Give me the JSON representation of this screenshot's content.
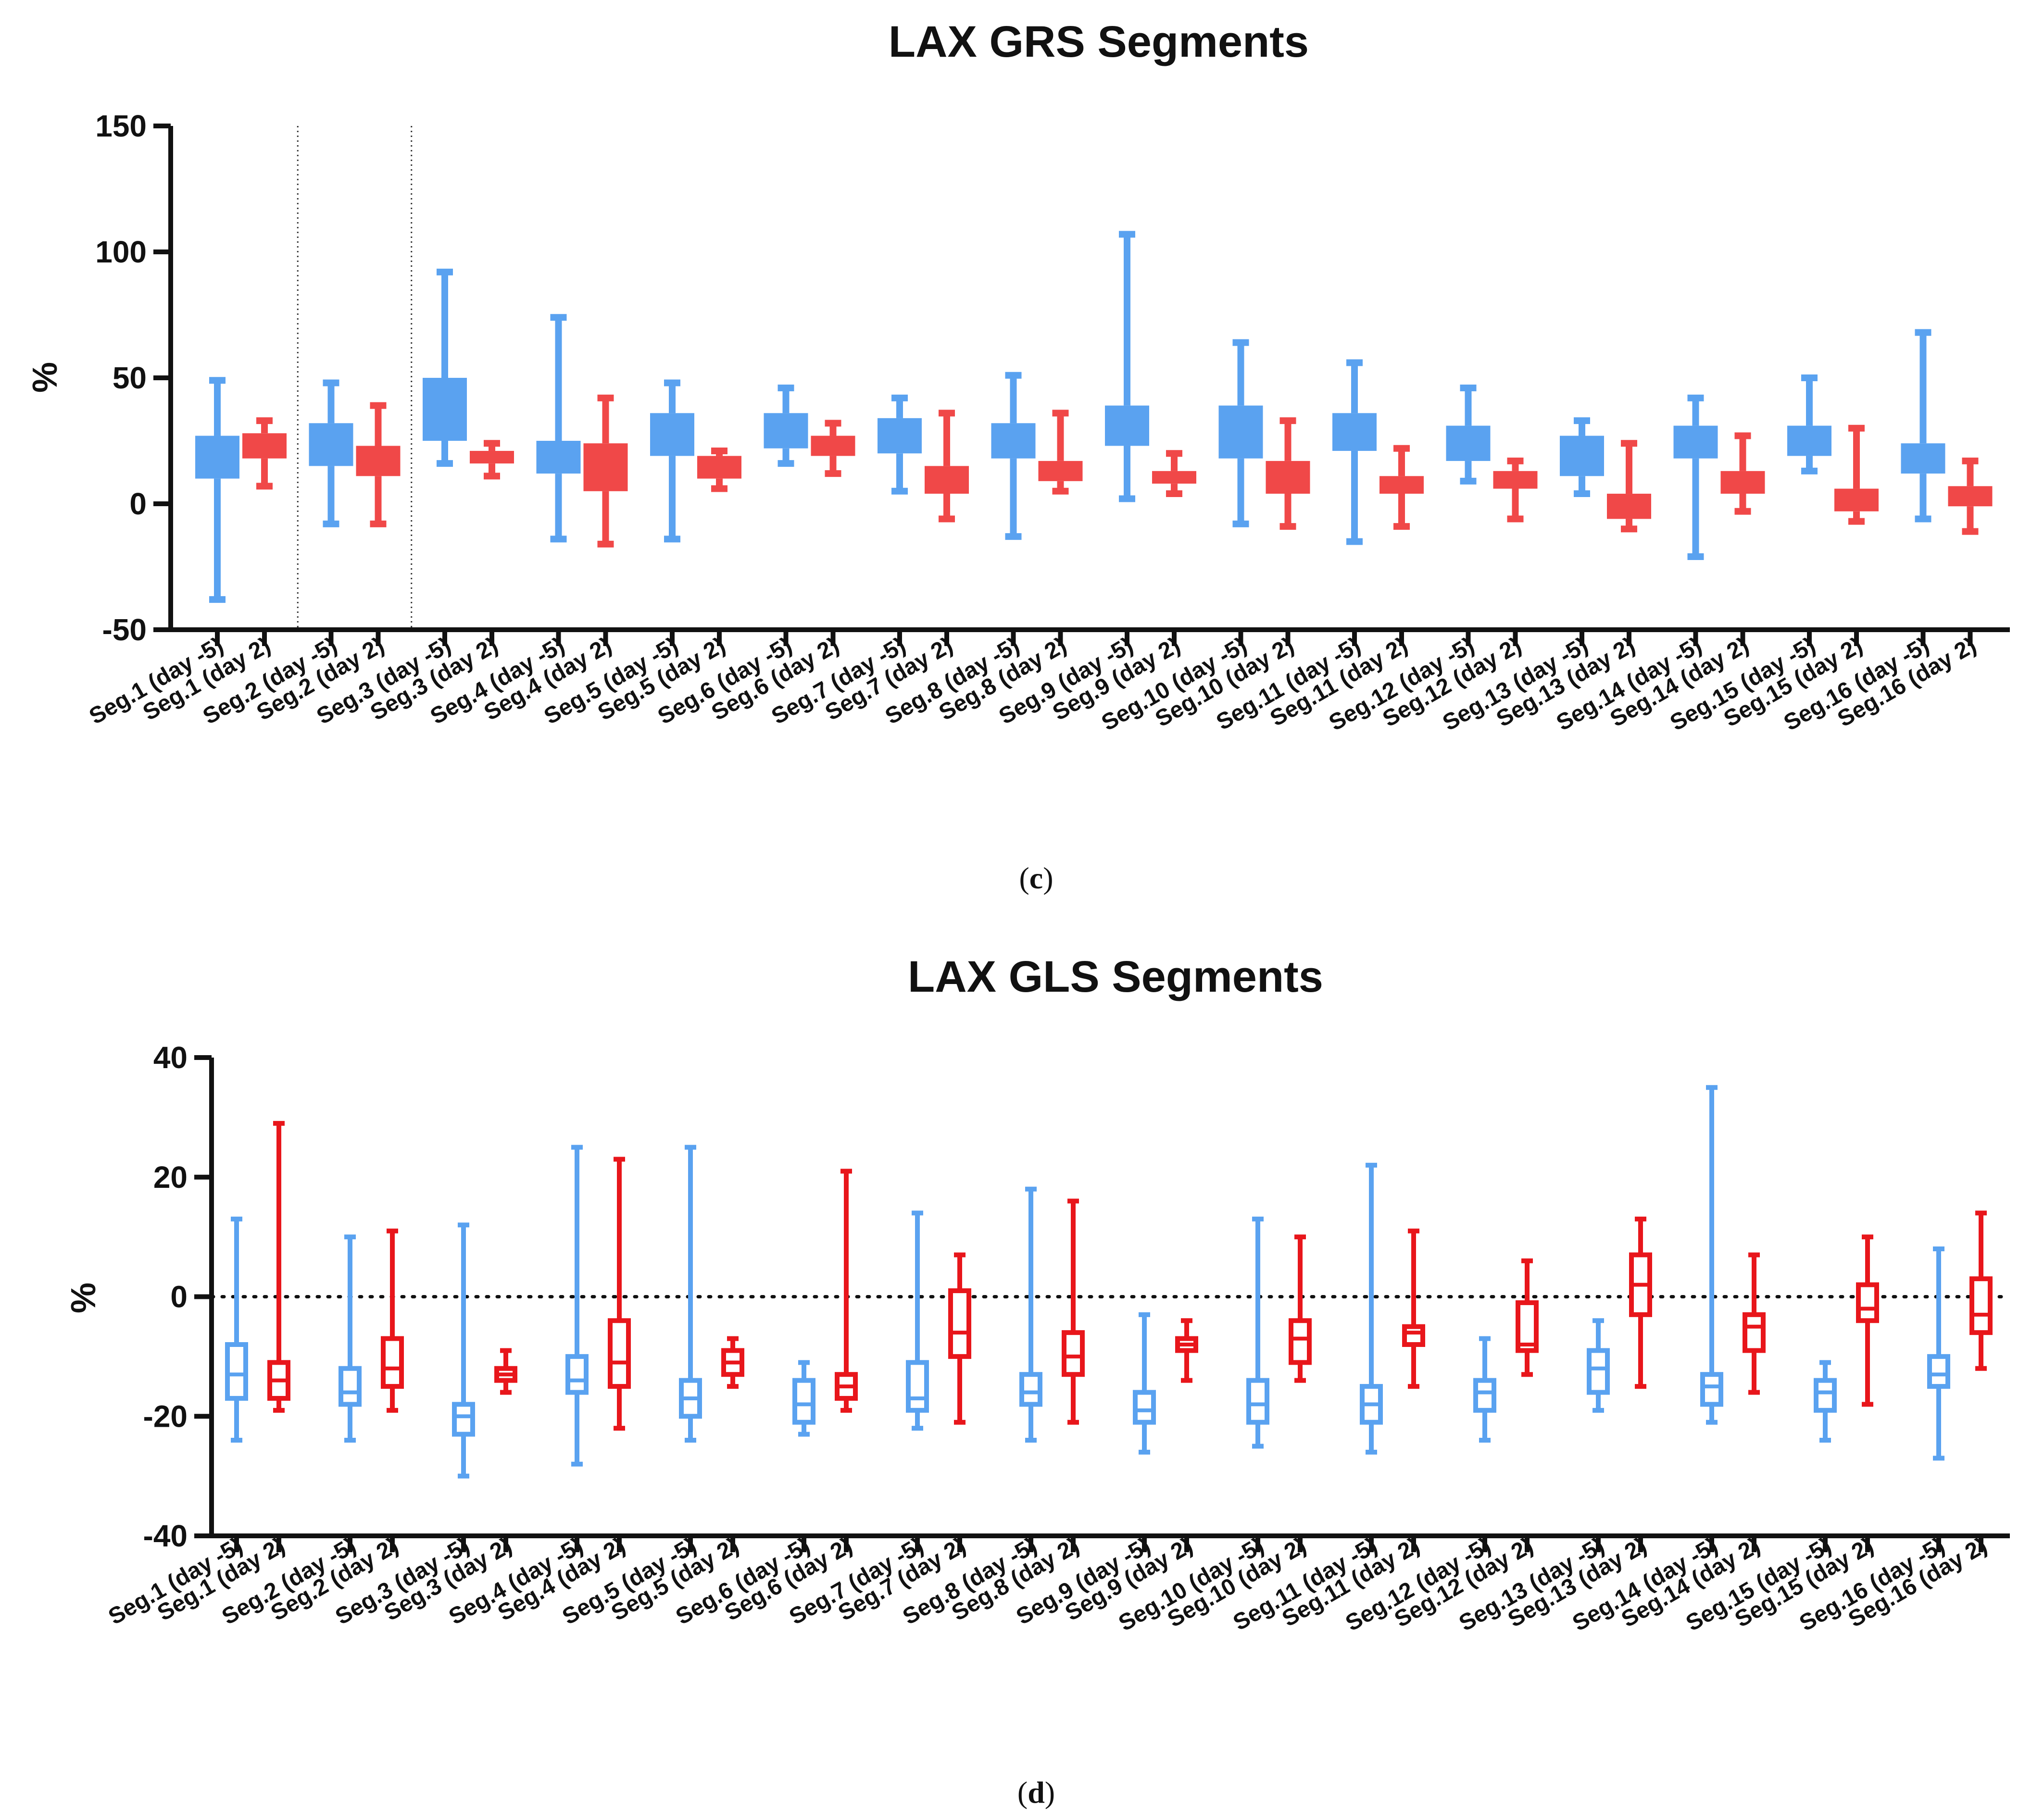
{
  "chart_data": [
    {
      "type": "box",
      "title": "LAX GRS Segments",
      "ylabel": "%",
      "ylim": [
        -50,
        150
      ],
      "yticks": [
        "150",
        "100",
        "50",
        "0",
        "-50"
      ],
      "fill_style": "filled",
      "colors": {
        "day_minus5": "#5aa2f0",
        "day_2": "#f04848"
      },
      "dividers_after_groups": [
        1,
        2
      ],
      "zero_line": false,
      "categories": [
        "Seg.1 (day -5)",
        "Seg.1 (day 2)",
        "Seg.2 (day -5)",
        "Seg.2 (day 2)",
        "Seg.3 (day -5)",
        "Seg.3 (day 2)",
        "Seg.4 (day -5)",
        "Seg.4 (day 2)",
        "Seg.5 (day -5)",
        "Seg.5 (day 2)",
        "Seg.6 (day -5)",
        "Seg.6 (day 2)",
        "Seg.7 (day -5)",
        "Seg.7 (day 2)",
        "Seg.8 (day -5)",
        "Seg.8 (day 2)",
        "Seg.9 (day -5)",
        "Seg.9 (day 2)",
        "Seg.10 (day -5)",
        "Seg.10 (day 2)",
        "Seg.11 (day -5)",
        "Seg.11 (day 2)",
        "Seg.12 (day -5)",
        "Seg.12 (day 2)",
        "Seg.13 (day -5)",
        "Seg.13 (day 2)",
        "Seg.14 (day -5)",
        "Seg.14 (day 2)",
        "Seg.15 (day -5)",
        "Seg.15 (day 2)",
        "Seg.16 (day -5)",
        "Seg.16 (day 2)"
      ],
      "boxes": [
        {
          "min": -38,
          "q1": 10,
          "median": 19,
          "q3": 27,
          "max": 49
        },
        {
          "min": 7,
          "q1": 18,
          "median": 23,
          "q3": 28,
          "max": 33
        },
        {
          "min": -8,
          "q1": 15,
          "median": 24,
          "q3": 32,
          "max": 48
        },
        {
          "min": -8,
          "q1": 11,
          "median": 18,
          "q3": 23,
          "max": 39
        },
        {
          "min": 16,
          "q1": 25,
          "median": 37,
          "q3": 50,
          "max": 92
        },
        {
          "min": 11,
          "q1": 16,
          "median": 19,
          "q3": 21,
          "max": 24
        },
        {
          "min": -14,
          "q1": 12,
          "median": 18,
          "q3": 25,
          "max": 74
        },
        {
          "min": -16,
          "q1": 5,
          "median": 14,
          "q3": 24,
          "max": 42
        },
        {
          "min": -14,
          "q1": 19,
          "median": 28,
          "q3": 36,
          "max": 48
        },
        {
          "min": 6,
          "q1": 10,
          "median": 15,
          "q3": 19,
          "max": 21
        },
        {
          "min": 16,
          "q1": 22,
          "median": 28,
          "q3": 36,
          "max": 46
        },
        {
          "min": 12,
          "q1": 19,
          "median": 24,
          "q3": 27,
          "max": 32
        },
        {
          "min": 5,
          "q1": 20,
          "median": 28,
          "q3": 34,
          "max": 42
        },
        {
          "min": -6,
          "q1": 4,
          "median": 10,
          "q3": 15,
          "max": 36
        },
        {
          "min": -13,
          "q1": 18,
          "median": 26,
          "q3": 32,
          "max": 51
        },
        {
          "min": 5,
          "q1": 9,
          "median": 14,
          "q3": 17,
          "max": 36
        },
        {
          "min": 2,
          "q1": 23,
          "median": 32,
          "q3": 39,
          "max": 107
        },
        {
          "min": 4,
          "q1": 8,
          "median": 11,
          "q3": 13,
          "max": 20
        },
        {
          "min": -8,
          "q1": 18,
          "median": 29,
          "q3": 39,
          "max": 64
        },
        {
          "min": -9,
          "q1": 4,
          "median": 11,
          "q3": 17,
          "max": 33
        },
        {
          "min": -15,
          "q1": 21,
          "median": 29,
          "q3": 36,
          "max": 56
        },
        {
          "min": -9,
          "q1": 4,
          "median": 8,
          "q3": 11,
          "max": 22
        },
        {
          "min": 9,
          "q1": 17,
          "median": 23,
          "q3": 31,
          "max": 46
        },
        {
          "min": -6,
          "q1": 6,
          "median": 9,
          "q3": 13,
          "max": 17
        },
        {
          "min": 4,
          "q1": 11,
          "median": 19,
          "q3": 27,
          "max": 33
        },
        {
          "min": -10,
          "q1": -6,
          "median": 0,
          "q3": 4,
          "max": 24
        },
        {
          "min": -21,
          "q1": 18,
          "median": 25,
          "q3": 31,
          "max": 42
        },
        {
          "min": -3,
          "q1": 4,
          "median": 9,
          "q3": 13,
          "max": 27
        },
        {
          "min": 13,
          "q1": 19,
          "median": 25,
          "q3": 31,
          "max": 50
        },
        {
          "min": -7,
          "q1": -3,
          "median": 2,
          "q3": 6,
          "max": 30
        },
        {
          "min": -6,
          "q1": 12,
          "median": 18,
          "q3": 24,
          "max": 68
        },
        {
          "min": -11,
          "q1": -1,
          "median": 3,
          "q3": 7,
          "max": 17
        }
      ]
    },
    {
      "type": "box",
      "title": "LAX GLS Segments",
      "ylabel": "%",
      "ylim": [
        -40,
        40
      ],
      "yticks": [
        "40",
        "20",
        "0",
        "-20",
        "-40"
      ],
      "fill_style": "outline",
      "colors": {
        "day_minus5": "#5aa2f0",
        "day_2": "#e8161b"
      },
      "dividers_after_groups": [],
      "zero_line": true,
      "categories": [
        "Seg.1 (day -5)",
        "Seg.1 (day 2)",
        "Seg.2 (day -5)",
        "Seg.2 (day 2)",
        "Seg.3 (day -5)",
        "Seg.3 (day 2)",
        "Seg.4 (day -5)",
        "Seg.4 (day 2)",
        "Seg.5 (day -5)",
        "Seg.5 (day 2)",
        "Seg.6 (day -5)",
        "Seg.6 (day 2)",
        "Seg.7 (day -5)",
        "Seg.7 (day 2)",
        "Seg.8 (day -5)",
        "Seg.8 (day 2)",
        "Seg.9 (day -5)",
        "Seg.9 (day 2)",
        "Seg.10 (day -5)",
        "Seg.10 (day 2)",
        "Seg.11 (day -5)",
        "Seg.11 (day 2)",
        "Seg.12 (day -5)",
        "Seg.12 (day 2)",
        "Seg.13 (day -5)",
        "Seg.13 (day 2)",
        "Seg.14 (day -5)",
        "Seg.14 (day 2)",
        "Seg.15 (day -5)",
        "Seg.15 (day 2)",
        "Seg.16 (day -5)",
        "Seg.16 (day 2)"
      ],
      "boxes": [
        {
          "min": -24,
          "q1": -17,
          "median": -13,
          "q3": -8,
          "max": 13
        },
        {
          "min": -19,
          "q1": -17,
          "median": -14,
          "q3": -11,
          "max": 29
        },
        {
          "min": -24,
          "q1": -18,
          "median": -16,
          "q3": -12,
          "max": 10
        },
        {
          "min": -19,
          "q1": -15,
          "median": -12,
          "q3": -7,
          "max": 11
        },
        {
          "min": -30,
          "q1": -23,
          "median": -20,
          "q3": -18,
          "max": 12
        },
        {
          "min": -16,
          "q1": -14,
          "median": -13,
          "q3": -12,
          "max": -9
        },
        {
          "min": -28,
          "q1": -16,
          "median": -14,
          "q3": -10,
          "max": 25
        },
        {
          "min": -22,
          "q1": -15,
          "median": -11,
          "q3": -4,
          "max": 23
        },
        {
          "min": -24,
          "q1": -20,
          "median": -17,
          "q3": -14,
          "max": 25
        },
        {
          "min": -15,
          "q1": -13,
          "median": -11,
          "q3": -9,
          "max": -7
        },
        {
          "min": -23,
          "q1": -21,
          "median": -18,
          "q3": -14,
          "max": -11
        },
        {
          "min": -19,
          "q1": -17,
          "median": -15,
          "q3": -13,
          "max": 21
        },
        {
          "min": -22,
          "q1": -19,
          "median": -17,
          "q3": -11,
          "max": 14
        },
        {
          "min": -21,
          "q1": -10,
          "median": -6,
          "q3": 1,
          "max": 7
        },
        {
          "min": -24,
          "q1": -18,
          "median": -16,
          "q3": -13,
          "max": 18
        },
        {
          "min": -21,
          "q1": -13,
          "median": -10,
          "q3": -6,
          "max": 16
        },
        {
          "min": -26,
          "q1": -21,
          "median": -19,
          "q3": -16,
          "max": -3
        },
        {
          "min": -14,
          "q1": -9,
          "median": -8,
          "q3": -7,
          "max": -4
        },
        {
          "min": -25,
          "q1": -21,
          "median": -18,
          "q3": -14,
          "max": 13
        },
        {
          "min": -14,
          "q1": -11,
          "median": -7,
          "q3": -4,
          "max": 10
        },
        {
          "min": -26,
          "q1": -21,
          "median": -18,
          "q3": -15,
          "max": 22
        },
        {
          "min": -15,
          "q1": -8,
          "median": -6,
          "q3": -5,
          "max": 11
        },
        {
          "min": -24,
          "q1": -19,
          "median": -16,
          "q3": -14,
          "max": -7
        },
        {
          "min": -13,
          "q1": -9,
          "median": -8,
          "q3": -1,
          "max": 6
        },
        {
          "min": -19,
          "q1": -16,
          "median": -12,
          "q3": -9,
          "max": -4
        },
        {
          "min": -15,
          "q1": -3,
          "median": 2,
          "q3": 7,
          "max": 13
        },
        {
          "min": -21,
          "q1": -18,
          "median": -15,
          "q3": -13,
          "max": 35
        },
        {
          "min": -16,
          "q1": -9,
          "median": -5,
          "q3": -3,
          "max": 7
        },
        {
          "min": -24,
          "q1": -19,
          "median": -16,
          "q3": -14,
          "max": -11
        },
        {
          "min": -18,
          "q1": -4,
          "median": -2,
          "q3": 2,
          "max": 10
        },
        {
          "min": -27,
          "q1": -15,
          "median": -13,
          "q3": -10,
          "max": 8
        },
        {
          "min": -12,
          "q1": -6,
          "median": -3,
          "q3": 3,
          "max": 14
        }
      ]
    }
  ],
  "captions": {
    "c": "(c)",
    "d": "(d)"
  },
  "caption_letters": {
    "c": "c",
    "d": "d"
  }
}
